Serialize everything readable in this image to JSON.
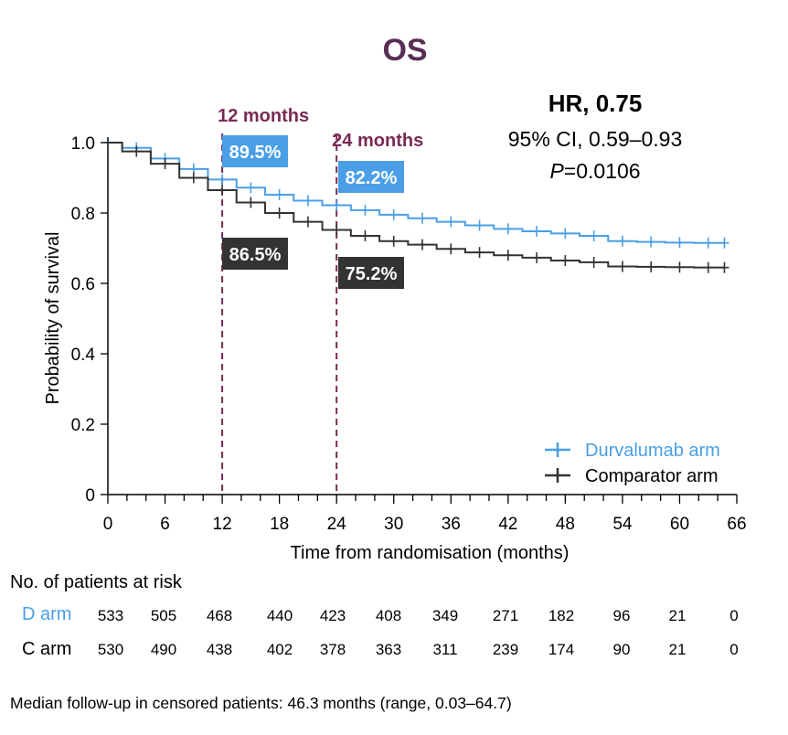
{
  "chart_data": {
    "type": "line",
    "title": "OS",
    "xlabel": "Time from randomisation (months)",
    "ylabel": "Probability of survival",
    "xlim": [
      0,
      66
    ],
    "ylim": [
      0,
      1.0
    ],
    "x_ticks": [
      "0",
      "6",
      "12",
      "18",
      "24",
      "30",
      "36",
      "42",
      "48",
      "54",
      "60",
      "66"
    ],
    "y_ticks": [
      "0",
      "0.2",
      "0.4",
      "0.6",
      "0.8",
      "1.0"
    ],
    "grid": false,
    "legend_position": "bottom-right",
    "series": [
      {
        "name": "Durvalumab arm",
        "color": "#4a9fe6",
        "x": [
          0,
          3,
          6,
          9,
          12,
          15,
          18,
          21,
          24,
          27,
          30,
          33,
          36,
          39,
          42,
          45,
          48,
          51,
          54,
          57,
          60,
          63,
          64.7
        ],
        "y": [
          1.0,
          0.985,
          0.955,
          0.925,
          0.895,
          0.872,
          0.852,
          0.835,
          0.822,
          0.808,
          0.795,
          0.785,
          0.775,
          0.765,
          0.755,
          0.748,
          0.742,
          0.735,
          0.72,
          0.718,
          0.716,
          0.715,
          0.715
        ]
      },
      {
        "name": "Comparator arm",
        "color": "#333333",
        "x": [
          0,
          3,
          6,
          9,
          12,
          15,
          18,
          21,
          24,
          27,
          30,
          33,
          36,
          39,
          42,
          45,
          48,
          51,
          54,
          57,
          60,
          63,
          64.7
        ],
        "y": [
          1.0,
          0.975,
          0.94,
          0.9,
          0.865,
          0.83,
          0.8,
          0.775,
          0.752,
          0.735,
          0.72,
          0.71,
          0.698,
          0.688,
          0.68,
          0.673,
          0.665,
          0.66,
          0.648,
          0.647,
          0.646,
          0.645,
          0.645
        ]
      }
    ],
    "vlines": [
      {
        "x": 12,
        "label": "12 months"
      },
      {
        "x": 24,
        "label": "24 months"
      }
    ],
    "point_labels": [
      {
        "series": "Durvalumab arm",
        "x": 12,
        "text": "89.5%"
      },
      {
        "series": "Durvalumab arm",
        "x": 24,
        "text": "82.2%"
      },
      {
        "series": "Comparator arm",
        "x": 12,
        "text": "86.5%"
      },
      {
        "series": "Comparator arm",
        "x": 24,
        "text": "75.2%"
      }
    ],
    "annotation": {
      "hr": "HR, 0.75",
      "ci": "95% CI, 0.59–0.93",
      "p_italic": "P",
      "p_rest": "=0.0106"
    }
  },
  "risk_table": {
    "title": "No. of patients at risk",
    "rows": [
      {
        "label": "D arm",
        "color": "#4a9fe6",
        "values": [
          "533",
          "505",
          "468",
          "440",
          "423",
          "408",
          "349",
          "271",
          "182",
          "96",
          "21",
          "0"
        ]
      },
      {
        "label": "C arm",
        "color": "#000000",
        "values": [
          "530",
          "490",
          "438",
          "402",
          "378",
          "363",
          "311",
          "239",
          "174",
          "90",
          "21",
          "0"
        ]
      }
    ]
  },
  "footnote": "Median follow-up in censored patients: 46.3 months (range, 0.03–64.7)",
  "colors": {
    "title": "#5a2d55",
    "vline": "#7a2a55",
    "durvalumab": "#4a9fe6",
    "comparator": "#333333"
  }
}
